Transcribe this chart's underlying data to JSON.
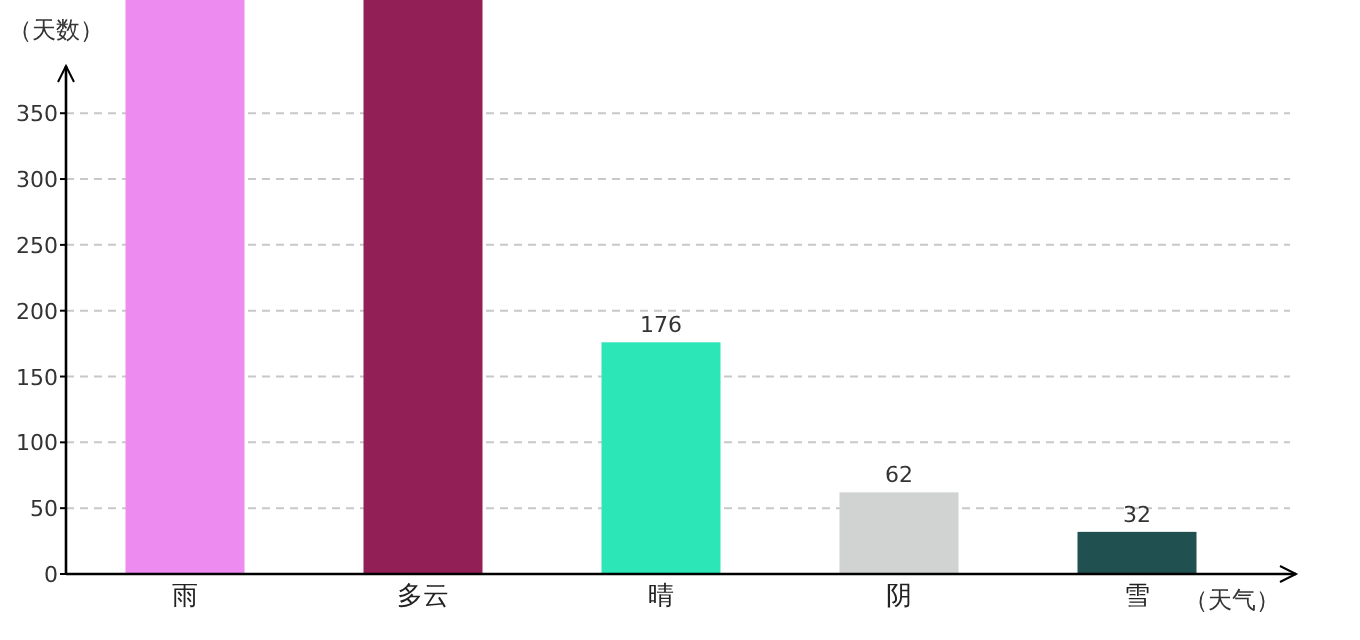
{
  "chart_data": {
    "type": "bar",
    "xlabel": "（天气）",
    "ylabel": "（天数）",
    "categories": [
      "雨",
      "多云",
      "晴",
      "阴",
      "雪"
    ],
    "values": [
      436,
      436,
      176,
      62,
      32
    ],
    "value_labels": [
      null,
      null,
      "176",
      "62",
      "32"
    ],
    "colors": [
      "#ee8bf0",
      "#921f55",
      "#2de6b8",
      "#d0d3d2",
      "#215050"
    ],
    "ylim": [
      0,
      436
    ],
    "yticks": [
      0,
      50,
      100,
      150,
      200,
      250,
      300,
      350
    ],
    "grid": "y"
  }
}
